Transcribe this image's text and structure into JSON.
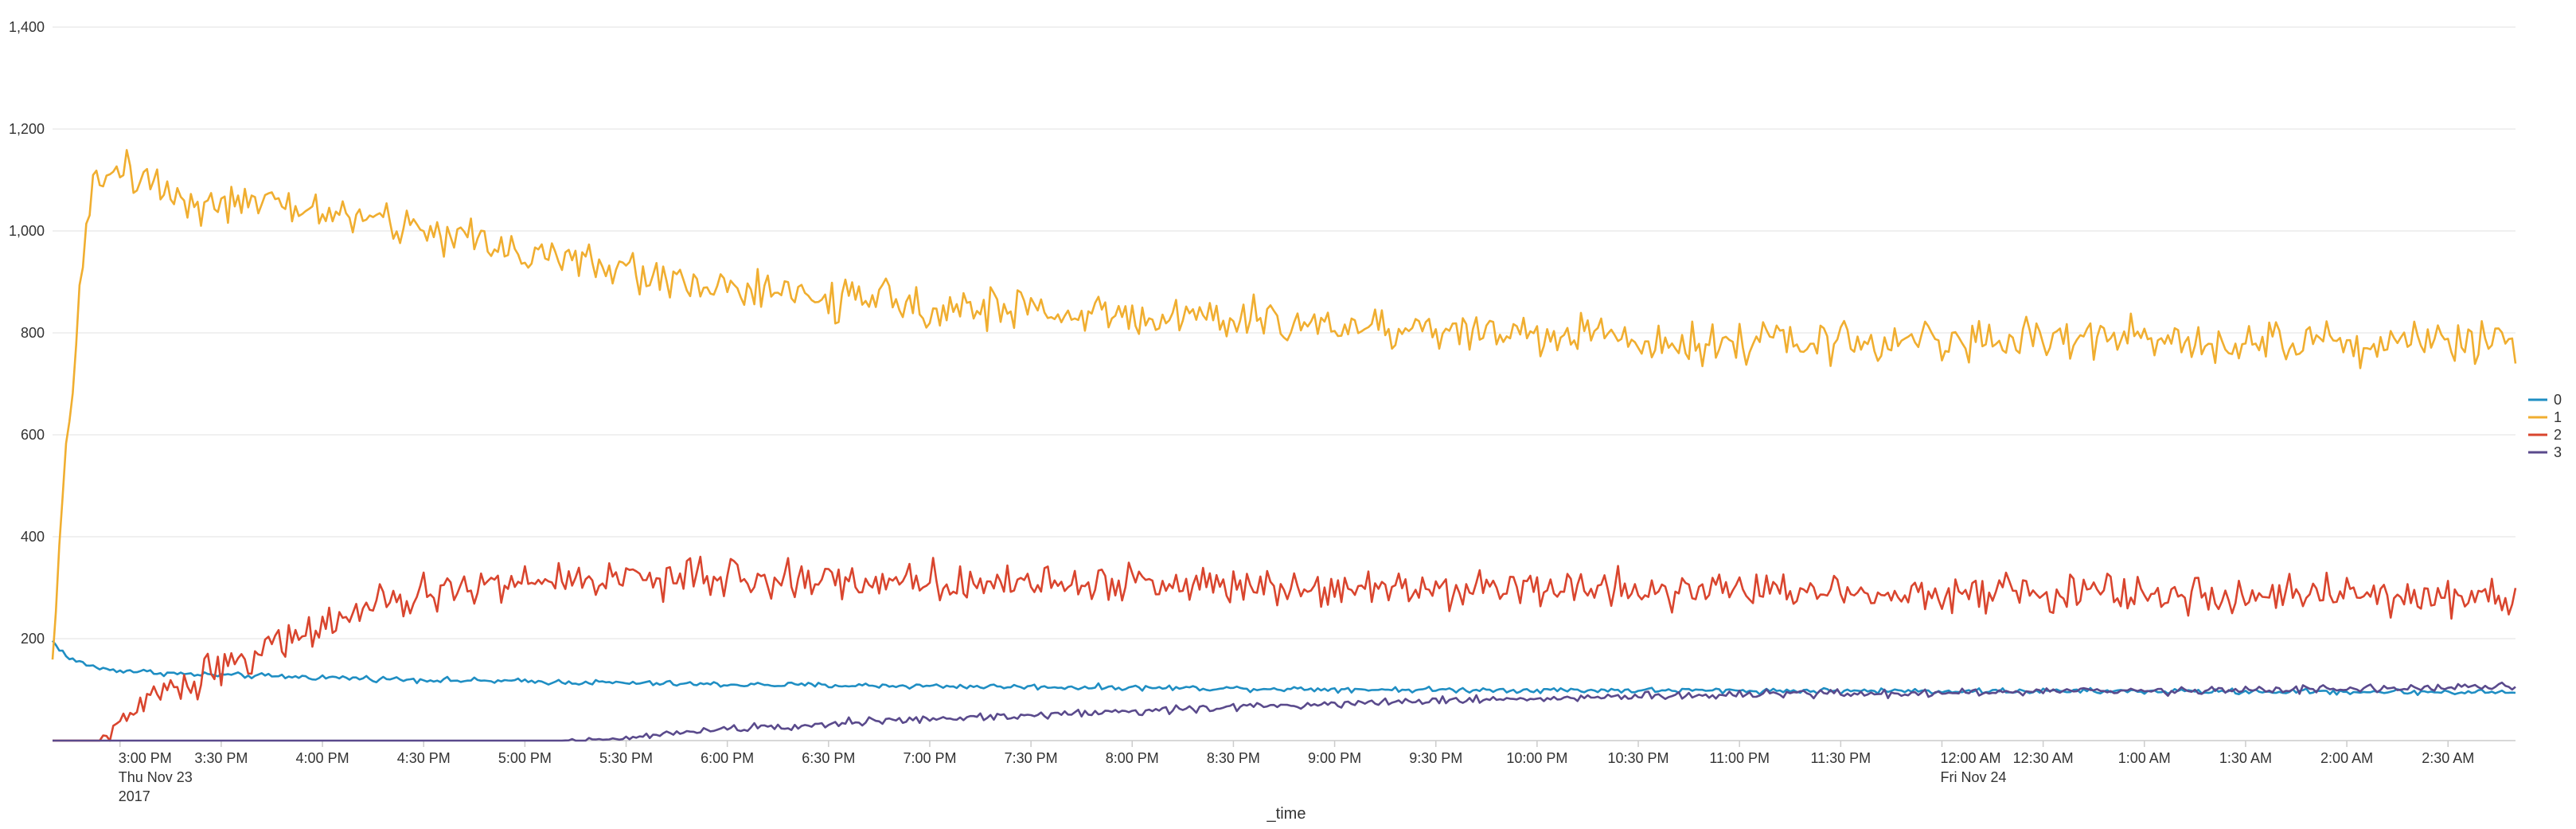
{
  "chart_data": {
    "type": "line",
    "xlabel": "_time",
    "ylabel": "",
    "ylim": [
      0,
      1400
    ],
    "yticks": [
      200,
      400,
      600,
      800,
      1000,
      1200,
      1400
    ],
    "ytick_labels": [
      "200",
      "400",
      "600",
      "800",
      "1,000",
      "1,200",
      "1,400"
    ],
    "x_range": [
      "2017-11-23 14:40",
      "2017-11-24 02:50"
    ],
    "x_sample_interval_minutes": 1,
    "xticks": [
      {
        "label": "3:00 PM",
        "sub": [
          "Thu Nov 23",
          "2017"
        ],
        "minutes": 20
      },
      {
        "label": "3:30 PM",
        "sub": [],
        "minutes": 50
      },
      {
        "label": "4:00 PM",
        "sub": [],
        "minutes": 80
      },
      {
        "label": "4:30 PM",
        "sub": [],
        "minutes": 110
      },
      {
        "label": "5:00 PM",
        "sub": [],
        "minutes": 140
      },
      {
        "label": "5:30 PM",
        "sub": [],
        "minutes": 170
      },
      {
        "label": "6:00 PM",
        "sub": [],
        "minutes": 200
      },
      {
        "label": "6:30 PM",
        "sub": [],
        "minutes": 230
      },
      {
        "label": "7:00 PM",
        "sub": [],
        "minutes": 260
      },
      {
        "label": "7:30 PM",
        "sub": [],
        "minutes": 290
      },
      {
        "label": "8:00 PM",
        "sub": [],
        "minutes": 320
      },
      {
        "label": "8:30 PM",
        "sub": [],
        "minutes": 350
      },
      {
        "label": "9:00 PM",
        "sub": [],
        "minutes": 380
      },
      {
        "label": "9:30 PM",
        "sub": [],
        "minutes": 410
      },
      {
        "label": "10:00 PM",
        "sub": [],
        "minutes": 440
      },
      {
        "label": "10:30 PM",
        "sub": [],
        "minutes": 470
      },
      {
        "label": "11:00 PM",
        "sub": [],
        "minutes": 500
      },
      {
        "label": "11:30 PM",
        "sub": [],
        "minutes": 530
      },
      {
        "label": "12:00 AM",
        "sub": [
          "Fri Nov 24"
        ],
        "minutes": 560
      },
      {
        "label": "12:30 AM",
        "sub": [],
        "minutes": 590
      },
      {
        "label": "1:00 AM",
        "sub": [],
        "minutes": 620
      },
      {
        "label": "1:30 AM",
        "sub": [],
        "minutes": 650
      },
      {
        "label": "2:00 AM",
        "sub": [],
        "minutes": 680
      },
      {
        "label": "2:30 AM",
        "sub": [],
        "minutes": 710
      }
    ],
    "grid": true,
    "legend": "right",
    "series": [
      {
        "name": "0",
        "color": "#1f8ec3",
        "keyframes": [
          [
            0,
            195
          ],
          [
            5,
            160
          ],
          [
            15,
            140
          ],
          [
            40,
            130
          ],
          [
            120,
            118
          ],
          [
            200,
            110
          ],
          [
            300,
            105
          ],
          [
            400,
            100
          ],
          [
            500,
            98
          ],
          [
            600,
            97
          ],
          [
            730,
            95
          ]
        ],
        "noise": 8
      },
      {
        "name": "1",
        "color": "#f0ae30",
        "keyframes": [
          [
            0,
            130
          ],
          [
            2,
            380
          ],
          [
            5,
            620
          ],
          [
            8,
            900
          ],
          [
            12,
            1080
          ],
          [
            20,
            1130
          ],
          [
            40,
            1060
          ],
          [
            80,
            1040
          ],
          [
            120,
            990
          ],
          [
            170,
            920
          ],
          [
            220,
            870
          ],
          [
            300,
            840
          ],
          [
            400,
            810
          ],
          [
            500,
            780
          ],
          [
            600,
            790
          ],
          [
            730,
            780
          ]
        ],
        "noise": 60
      },
      {
        "name": "2",
        "color": "#d9452e",
        "keyframes": [
          [
            0,
            0
          ],
          [
            14,
            0
          ],
          [
            18,
            20
          ],
          [
            30,
            90
          ],
          [
            50,
            145
          ],
          [
            70,
            200
          ],
          [
            90,
            250
          ],
          [
            120,
            300
          ],
          [
            160,
            320
          ],
          [
            730,
            280
          ]
        ],
        "noise": 55
      },
      {
        "name": "3",
        "color": "#5a4a8c",
        "keyframes": [
          [
            0,
            0
          ],
          [
            150,
            0
          ],
          [
            170,
            5
          ],
          [
            200,
            25
          ],
          [
            260,
            42
          ],
          [
            320,
            58
          ],
          [
            400,
            78
          ],
          [
            500,
            90
          ],
          [
            730,
            105
          ]
        ],
        "noise": 12
      }
    ]
  }
}
